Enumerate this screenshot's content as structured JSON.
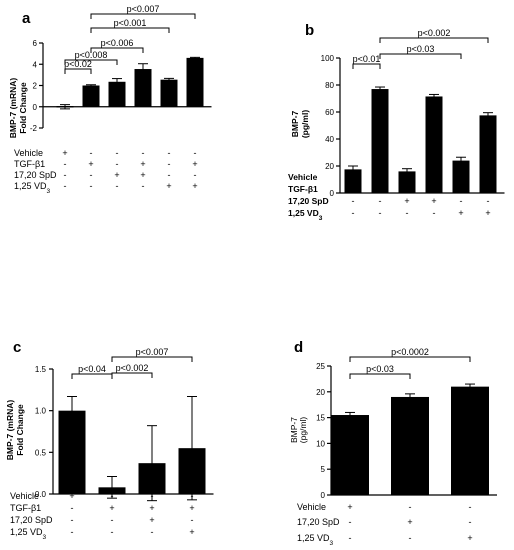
{
  "chart_data": [
    {
      "type": "bar",
      "panel": "a",
      "ylabel": [
        "BMP-7 (mRNA)",
        "Fold Change"
      ],
      "ylim": [
        -2,
        6
      ],
      "yticks": [
        "-2",
        "0",
        "2",
        "4",
        "6"
      ],
      "ytick_values": [
        -2,
        0,
        2,
        4,
        6
      ],
      "values": [
        0,
        2.0,
        2.35,
        3.55,
        2.55,
        4.6
      ],
      "errors": [
        0.2,
        0.07,
        0.3,
        0.5,
        0.12,
        0.05
      ],
      "conditions": [
        {
          "label": "Vehicle",
          "signs": [
            "+",
            "-",
            "-",
            "-",
            "-",
            "-"
          ]
        },
        {
          "label": "TGF-β1",
          "signs": [
            "-",
            "+",
            "-",
            "+",
            "-",
            "+"
          ]
        },
        {
          "label": "17,20 SpD",
          "signs": [
            "-",
            "-",
            "+",
            "+",
            "-",
            "-"
          ]
        },
        {
          "label": "1,25 VD",
          "sub": "3",
          "signs": [
            "-",
            "-",
            "-",
            "-",
            "+",
            "+"
          ]
        }
      ],
      "significance": [
        {
          "from": 0,
          "to": 1,
          "label": "p<0.02"
        },
        {
          "from": 0,
          "to": 2,
          "label": "p<0.008"
        },
        {
          "from": 1,
          "to": 3,
          "label": "p<0.006"
        },
        {
          "from": 1,
          "to": 4,
          "label": "p<0.001"
        },
        {
          "from": 1,
          "to": 5,
          "label": "p<0.007"
        }
      ]
    },
    {
      "type": "bar",
      "panel": "b",
      "ylabel": [
        "BMP-7",
        "(pg/ml)"
      ],
      "ylim": [
        0,
        100
      ],
      "yticks": [
        "0",
        "20",
        "40",
        "60",
        "80",
        "100"
      ],
      "ytick_values": [
        0,
        20,
        40,
        60,
        80,
        100
      ],
      "values": [
        17.5,
        77,
        16,
        71.5,
        24,
        57.5
      ],
      "errors": [
        2.5,
        1.5,
        2.0,
        1.5,
        2.5,
        2.0
      ],
      "conditions": [
        {
          "label": "Vehicle",
          "signs": [
            "+",
            "-",
            "-",
            "-",
            "-",
            "-"
          ]
        },
        {
          "label": "TGF-β1",
          "signs": [
            "-",
            "+",
            "-",
            "+",
            "-",
            "+"
          ]
        },
        {
          "label": "17,20 SpD",
          "signs": [
            "-",
            "-",
            "+",
            "+",
            "-",
            "-"
          ]
        },
        {
          "label": "1,25 VD",
          "sub": "3",
          "signs": [
            "-",
            "-",
            "-",
            "-",
            "+",
            "+"
          ]
        }
      ],
      "significance": [
        {
          "from": 0,
          "to": 1,
          "label": "p<0.01"
        },
        {
          "from": 1,
          "to": 4,
          "label": "p<0.03"
        },
        {
          "from": 1,
          "to": 5,
          "label": "p<0.002"
        }
      ]
    },
    {
      "type": "bar",
      "panel": "c",
      "ylabel": [
        "BMP-7 (mRNA)",
        "Fold Change"
      ],
      "ylim": [
        0,
        1.5
      ],
      "yticks": [
        "0.0",
        "0.5",
        "1.0",
        "1.5"
      ],
      "ytick_values": [
        0,
        0.5,
        1.0,
        1.5
      ],
      "values": [
        1.0,
        0.08,
        0.37,
        0.55
      ],
      "errors": [
        0.17,
        0.13,
        0.45,
        0.62
      ],
      "conditions": [
        {
          "label": "Vehicle",
          "signs": [
            "+",
            "-",
            "-",
            "-"
          ]
        },
        {
          "label": "TGF-β1",
          "signs": [
            "-",
            "+",
            "+",
            "+"
          ]
        },
        {
          "label": "17,20 SpD",
          "signs": [
            "-",
            "-",
            "+",
            "-"
          ]
        },
        {
          "label": "1,25 VD",
          "sub": "3",
          "signs": [
            "-",
            "-",
            "-",
            "+"
          ]
        }
      ],
      "significance": [
        {
          "from": 0,
          "to": 1,
          "label": "p<0.04"
        },
        {
          "from": 1,
          "to": 2,
          "label": "p<0.002"
        },
        {
          "from": 1,
          "to": 3,
          "label": "p<0.007"
        }
      ]
    },
    {
      "type": "bar",
      "panel": "d",
      "ylabel": [
        "BMP-7",
        "(pg/ml)"
      ],
      "ylim": [
        0,
        25
      ],
      "yticks": [
        "0",
        "5",
        "10",
        "15",
        "20",
        "25"
      ],
      "ytick_values": [
        0,
        5,
        10,
        15,
        20,
        25
      ],
      "values": [
        15.5,
        19.0,
        21.0
      ],
      "errors": [
        0.5,
        0.6,
        0.5
      ],
      "conditions": [
        {
          "label": "Vehicle",
          "signs": [
            "+",
            "-",
            "-"
          ]
        },
        {
          "label": "17,20 SpD",
          "signs": [
            "-",
            "+",
            "-"
          ]
        },
        {
          "label": "1,25 VD",
          "sub": "3",
          "signs": [
            "-",
            "-",
            "+"
          ]
        }
      ],
      "significance": [
        {
          "from": 0,
          "to": 1,
          "label": "p<0.03"
        },
        {
          "from": 0,
          "to": 2,
          "label": "p<0.0002"
        }
      ]
    }
  ]
}
